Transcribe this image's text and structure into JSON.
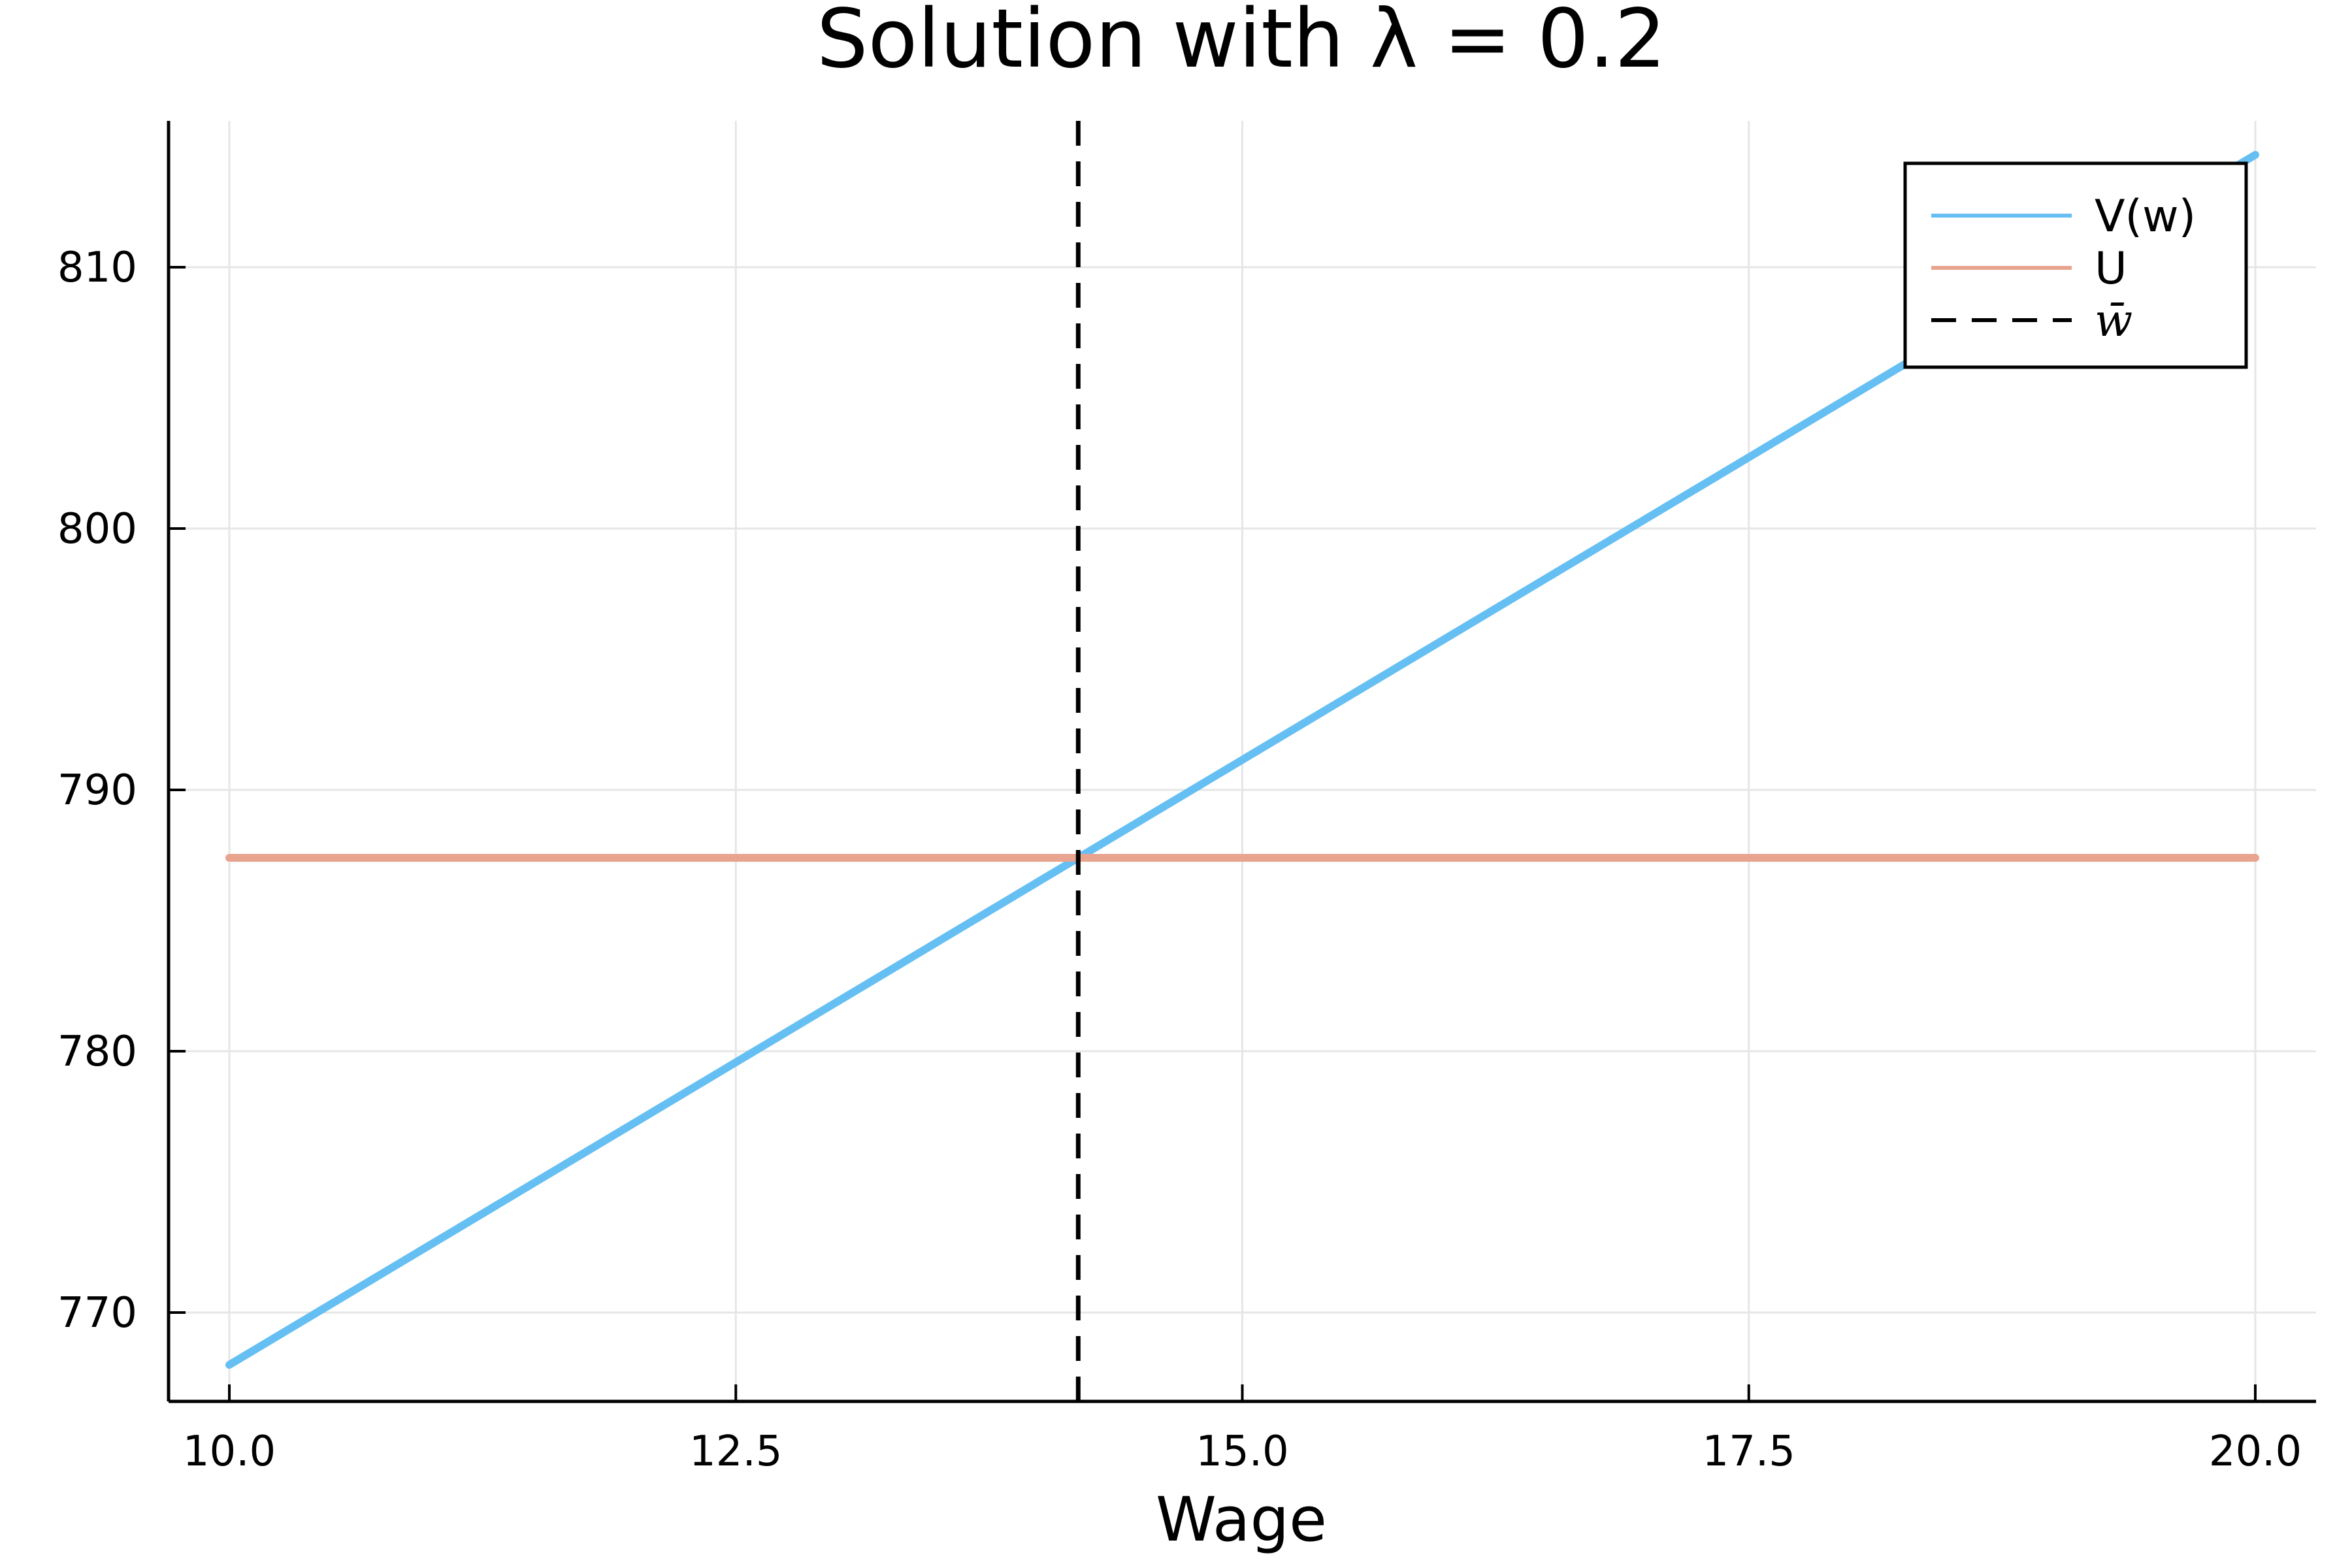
{
  "chart_data": {
    "type": "line",
    "title": "Solution with λ = 0.2",
    "xlabel": "Wage",
    "ylabel": "",
    "xlim": [
      9.7,
      20.3
    ],
    "ylim": [
      766.6,
      815.6
    ],
    "grid": true,
    "legend_position": "top-right",
    "xticks": [
      10.0,
      12.5,
      15.0,
      17.5,
      20.0
    ],
    "xtick_labels": [
      "10.0",
      "12.5",
      "15.0",
      "17.5",
      "20.0"
    ],
    "yticks": [
      770,
      780,
      790,
      800,
      810
    ],
    "ytick_labels": [
      "770",
      "780",
      "790",
      "800",
      "810"
    ],
    "series": [
      {
        "name": "V(w)",
        "color": "#66bff2",
        "style": "solid",
        "x": [
          10.0,
          20.0
        ],
        "y": [
          768.0,
          814.3
        ]
      },
      {
        "name": "U",
        "color": "#e8a48e",
        "style": "solid",
        "x": [
          10.0,
          20.0
        ],
        "y": [
          787.4,
          787.4
        ]
      }
    ],
    "vlines": [
      {
        "name": "w̄",
        "color": "#000000",
        "style": "dashed",
        "x": 14.19
      }
    ]
  }
}
